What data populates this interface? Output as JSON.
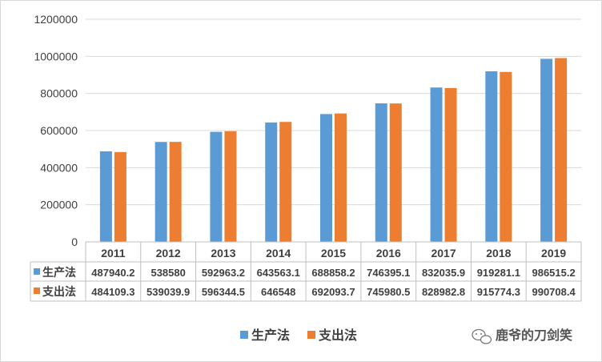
{
  "chart_data": {
    "type": "bar",
    "categories": [
      "2011",
      "2012",
      "2013",
      "2014",
      "2015",
      "2016",
      "2017",
      "2018",
      "2019"
    ],
    "series": [
      {
        "name": "生产法",
        "color": "#5b9bd5",
        "values": [
          487940.2,
          538580,
          592963.2,
          643563.1,
          688858.2,
          746395.1,
          832035.9,
          919281.1,
          986515.2
        ],
        "labels": [
          "487940.2",
          "538580",
          "592963.2",
          "643563.1",
          "688858.2",
          "746395.1",
          "832035.9",
          "919281.1",
          "986515.2"
        ]
      },
      {
        "name": "支出法",
        "color": "#ed7d31",
        "values": [
          484109.3,
          539039.9,
          596344.5,
          646548,
          692093.7,
          745980.5,
          828982.8,
          915774.3,
          990708.4
        ],
        "labels": [
          "484109.3",
          "539039.9",
          "596344.5",
          "646548",
          "692093.7",
          "745980.5",
          "828982.8",
          "915774.3",
          "990708.4"
        ]
      }
    ],
    "y_ticks": [
      "0",
      "200000",
      "400000",
      "600000",
      "800000",
      "1000000",
      "1200000"
    ],
    "ylim": [
      0,
      1200000
    ],
    "grid": true,
    "data_table": true,
    "legend_position": "bottom"
  },
  "watermark": {
    "text": "鹿爷的刀剑笑",
    "icon": "wechat-bubble-icon"
  }
}
